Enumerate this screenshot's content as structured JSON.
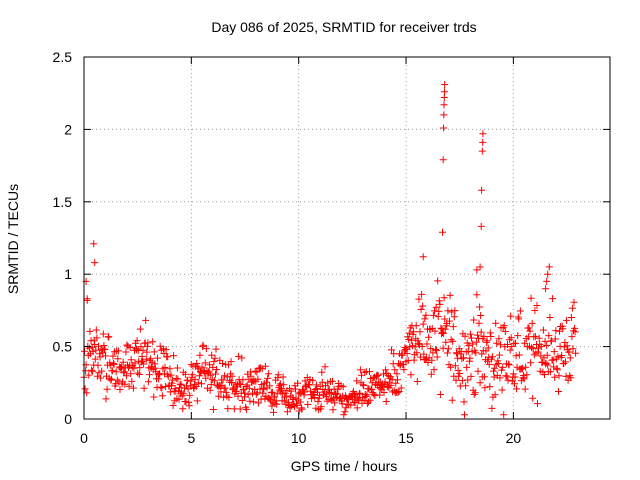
{
  "chart_data": {
    "type": "scatter",
    "title": "Day 086 of 2025, SRMTID for receiver trds",
    "xlabel": "GPS time / hours",
    "ylabel": "SRMTID / TECUs",
    "xlim": [
      0,
      24.5
    ],
    "ylim": [
      0,
      2.5
    ],
    "xticks": [
      0,
      5,
      10,
      15,
      20
    ],
    "yticks": [
      0,
      0.5,
      1,
      1.5,
      2,
      2.5
    ],
    "xtick_labels": [
      "0",
      "5",
      "10",
      "15",
      "20"
    ],
    "ytick_labels": [
      "0",
      "0.5",
      "1",
      "1.5",
      "2",
      "2.5"
    ],
    "grid": true,
    "marker": "+",
    "color": "#ff0000",
    "series": [
      {
        "name": "SRMTID",
        "profile": [
          [
            0.0,
            0.42,
            0.14
          ],
          [
            0.5,
            0.46,
            0.14
          ],
          [
            1.0,
            0.38,
            0.12
          ],
          [
            1.5,
            0.33,
            0.11
          ],
          [
            2.0,
            0.36,
            0.12
          ],
          [
            2.5,
            0.4,
            0.12
          ],
          [
            3.0,
            0.45,
            0.13
          ],
          [
            3.5,
            0.36,
            0.11
          ],
          [
            4.0,
            0.26,
            0.09
          ],
          [
            4.5,
            0.22,
            0.08
          ],
          [
            5.0,
            0.26,
            0.09
          ],
          [
            5.5,
            0.34,
            0.1
          ],
          [
            6.0,
            0.3,
            0.1
          ],
          [
            6.5,
            0.26,
            0.09
          ],
          [
            7.0,
            0.25,
            0.08
          ],
          [
            7.5,
            0.24,
            0.08
          ],
          [
            8.0,
            0.24,
            0.08
          ],
          [
            8.5,
            0.22,
            0.07
          ],
          [
            9.0,
            0.17,
            0.06
          ],
          [
            9.5,
            0.14,
            0.05
          ],
          [
            10.0,
            0.13,
            0.05
          ],
          [
            10.5,
            0.18,
            0.06
          ],
          [
            11.0,
            0.18,
            0.06
          ],
          [
            11.5,
            0.16,
            0.05
          ],
          [
            12.0,
            0.13,
            0.05
          ],
          [
            12.5,
            0.15,
            0.05
          ],
          [
            13.0,
            0.2,
            0.06
          ],
          [
            13.5,
            0.23,
            0.07
          ],
          [
            14.0,
            0.22,
            0.07
          ],
          [
            14.5,
            0.26,
            0.08
          ],
          [
            15.0,
            0.45,
            0.15
          ],
          [
            15.5,
            0.62,
            0.18
          ],
          [
            16.0,
            0.52,
            0.18
          ],
          [
            16.5,
            0.58,
            0.22
          ],
          [
            17.0,
            0.52,
            0.2
          ],
          [
            17.5,
            0.42,
            0.16
          ],
          [
            18.0,
            0.45,
            0.18
          ],
          [
            18.5,
            0.48,
            0.2
          ],
          [
            19.0,
            0.38,
            0.15
          ],
          [
            19.5,
            0.42,
            0.15
          ],
          [
            20.0,
            0.4,
            0.15
          ],
          [
            20.5,
            0.42,
            0.15
          ],
          [
            21.0,
            0.48,
            0.16
          ],
          [
            21.5,
            0.5,
            0.16
          ],
          [
            22.0,
            0.46,
            0.15
          ],
          [
            22.5,
            0.48,
            0.15
          ],
          [
            22.85,
            0.52,
            0.15
          ]
        ],
        "outliers": [
          [
            0.1,
            0.95
          ],
          [
            0.15,
            0.83
          ],
          [
            0.45,
            1.21
          ],
          [
            0.5,
            1.08
          ],
          [
            15.8,
            1.12
          ],
          [
            16.7,
            1.29
          ],
          [
            16.73,
            1.79
          ],
          [
            16.75,
            2.01
          ],
          [
            16.76,
            2.1
          ],
          [
            16.77,
            2.17
          ],
          [
            16.78,
            2.22
          ],
          [
            16.79,
            2.26
          ],
          [
            16.8,
            2.31
          ],
          [
            18.3,
            1.03
          ],
          [
            18.45,
            1.05
          ],
          [
            18.5,
            1.33
          ],
          [
            18.52,
            1.58
          ],
          [
            18.55,
            1.85
          ],
          [
            18.57,
            1.91
          ],
          [
            18.58,
            1.97
          ],
          [
            21.5,
            0.9
          ],
          [
            21.55,
            0.95
          ],
          [
            21.6,
            1.0
          ]
        ],
        "x_start": 0,
        "x_end": 22.9,
        "x_step": 0.025
      }
    ]
  }
}
